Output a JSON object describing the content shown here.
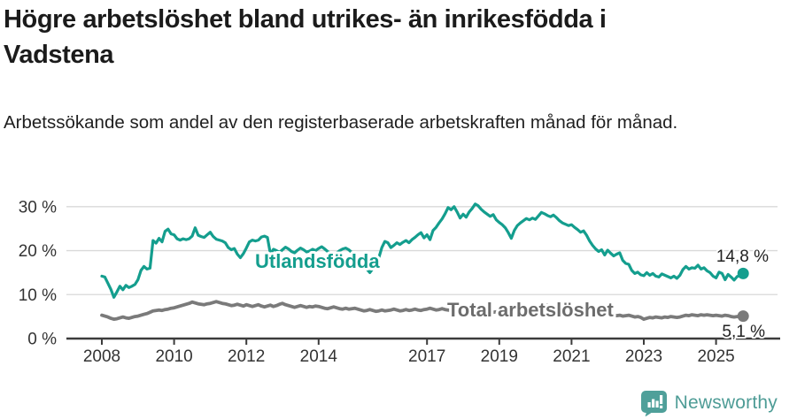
{
  "title": "Högre arbetslöshet bland utrikes- än inrikesfödda i Vadstena",
  "subtitle": "Arbetssökande som andel av den registerbaserade arbetskraften månad för månad.",
  "branding": {
    "logo_text": "Newsworthy",
    "logo_color": "#4e9c96"
  },
  "chart_data": {
    "type": "line",
    "title": "Högre arbetslöshet bland utrikes- än inrikesfödda i Vadstena",
    "subtitle": "Arbetssökande som andel av den registerbaserade arbetskraften månad för månad.",
    "unit": "%",
    "frequency": "monthly",
    "x_start": "2008-01",
    "x_end": "2025-10",
    "ylim": [
      0,
      32
    ],
    "grid": true,
    "y_ticks": [
      {
        "value": 0,
        "label": "0 %"
      },
      {
        "value": 10,
        "label": "10 %"
      },
      {
        "value": 20,
        "label": "20 %"
      },
      {
        "value": 30,
        "label": "30 %"
      }
    ],
    "x_ticks": [
      {
        "year": 2008,
        "label": "2008"
      },
      {
        "year": 2010,
        "label": "2010"
      },
      {
        "year": 2012,
        "label": "2012"
      },
      {
        "year": 2014,
        "label": "2014"
      },
      {
        "year": 2017,
        "label": "2017"
      },
      {
        "year": 2019,
        "label": "2019"
      },
      {
        "year": 2021,
        "label": "2021"
      },
      {
        "year": 2023,
        "label": "2023"
      },
      {
        "year": 2025,
        "label": "2025"
      }
    ],
    "series": [
      {
        "name": "Utlandsfödda",
        "color": "#149e8e",
        "end_label": "14,8 %",
        "end_value": 14.8,
        "values": [
          14.2,
          14.0,
          12.6,
          11.2,
          9.4,
          10.6,
          11.9,
          11.1,
          12.1,
          11.6,
          11.9,
          12.3,
          13.4,
          15.5,
          16.4,
          15.8,
          16.0,
          22.3,
          21.7,
          22.8,
          22.0,
          24.4,
          24.9,
          23.8,
          23.6,
          22.7,
          22.4,
          22.7,
          22.5,
          22.7,
          23.3,
          25.2,
          23.5,
          23.2,
          23.0,
          23.6,
          24.2,
          23.2,
          22.6,
          22.4,
          22.2,
          21.8,
          20.7,
          20.2,
          20.5,
          19.2,
          18.4,
          19.3,
          20.6,
          22.0,
          22.4,
          22.2,
          22.4,
          23.1,
          23.3,
          23.0,
          19.2,
          20.3,
          20.0,
          19.6,
          20.2,
          20.8,
          20.4,
          19.8,
          19.5,
          20.1,
          20.6,
          20.2,
          19.7,
          19.9,
          20.3,
          20.0,
          20.5,
          20.9,
          20.4,
          19.8,
          19.4,
          19.0,
          19.5,
          20.0,
          20.4,
          20.6,
          20.2,
          19.6,
          18.8,
          18.0,
          17.2,
          16.4,
          15.8,
          15.0,
          15.9,
          17.0,
          18.4,
          20.7,
          22.1,
          21.8,
          20.7,
          21.2,
          21.8,
          21.4,
          21.9,
          22.3,
          21.8,
          22.5,
          23.0,
          23.6,
          24.1,
          22.9,
          23.6,
          22.5,
          24.6,
          25.3,
          26.3,
          27.2,
          28.4,
          29.8,
          29.3,
          30.0,
          28.8,
          27.4,
          28.3,
          27.6,
          28.8,
          29.6,
          30.6,
          30.2,
          29.4,
          28.8,
          28.3,
          27.8,
          28.2,
          27.0,
          26.4,
          25.9,
          25.2,
          24.1,
          22.8,
          24.6,
          25.7,
          26.3,
          26.8,
          27.3,
          27.0,
          27.4,
          27.1,
          27.9,
          28.7,
          28.4,
          28.0,
          27.7,
          28.1,
          27.5,
          26.8,
          26.3,
          26.0,
          25.7,
          25.9,
          25.3,
          24.8,
          24.2,
          24.5,
          23.5,
          22.2,
          21.2,
          20.4,
          19.8,
          20.2,
          19.0,
          20.1,
          19.4,
          18.8,
          19.2,
          19.5,
          17.8,
          17.1,
          16.9,
          15.5,
          14.8,
          15.1,
          14.5,
          14.3,
          15.0,
          14.4,
          14.8,
          14.2,
          14.0,
          14.7,
          14.4,
          14.1,
          13.8,
          14.2,
          13.7,
          14.4,
          15.7,
          16.4,
          15.8,
          16.1,
          16.0,
          16.7,
          15.8,
          16.1,
          15.4,
          15.0,
          14.2,
          13.8,
          15.1,
          14.8,
          13.4,
          14.6,
          14.0,
          13.3,
          14.1,
          14.4,
          14.8
        ]
      },
      {
        "name": "Total arbetslöshet",
        "color": "#7a7a7a",
        "end_label": "5,1 %",
        "end_value": 5.1,
        "values": [
          5.3,
          5.1,
          4.9,
          4.6,
          4.4,
          4.5,
          4.7,
          4.9,
          4.7,
          4.6,
          4.8,
          5.0,
          5.1,
          5.3,
          5.5,
          5.7,
          6.0,
          6.3,
          6.4,
          6.5,
          6.4,
          6.6,
          6.7,
          6.9,
          7.0,
          7.2,
          7.4,
          7.6,
          7.8,
          8.0,
          8.3,
          8.1,
          7.9,
          7.8,
          7.7,
          7.9,
          8.0,
          8.2,
          8.4,
          8.2,
          8.0,
          7.9,
          7.7,
          7.5,
          7.6,
          7.8,
          7.6,
          7.4,
          7.7,
          7.5,
          7.3,
          7.5,
          7.7,
          7.4,
          7.2,
          7.4,
          7.6,
          7.3,
          7.5,
          7.8,
          8.0,
          7.7,
          7.5,
          7.3,
          7.1,
          7.3,
          7.5,
          7.3,
          7.1,
          7.3,
          7.2,
          7.4,
          7.3,
          7.1,
          6.9,
          6.8,
          7.0,
          7.2,
          7.0,
          6.8,
          6.7,
          6.9,
          6.7,
          6.8,
          6.9,
          6.7,
          6.5,
          6.3,
          6.4,
          6.6,
          6.4,
          6.2,
          6.3,
          6.5,
          6.3,
          6.4,
          6.5,
          6.7,
          6.5,
          6.3,
          6.4,
          6.6,
          6.4,
          6.5,
          6.7,
          6.5,
          6.4,
          6.6,
          6.7,
          6.9,
          6.7,
          6.5,
          6.6,
          6.8,
          6.6,
          6.5,
          6.4,
          6.5,
          6.3,
          6.4,
          6.3,
          6.2,
          6.1,
          6.0,
          6.1,
          6.2,
          6.0,
          5.9,
          6.0,
          6.1,
          6.0,
          6.1,
          6.0,
          6.1,
          6.2,
          6.1,
          6.0,
          6.2,
          6.3,
          6.2,
          6.1,
          6.2,
          6.3,
          6.4,
          6.5,
          6.6,
          7.0,
          7.4,
          7.6,
          7.5,
          7.4,
          7.3,
          7.2,
          7.0,
          6.9,
          6.8,
          6.7,
          6.6,
          6.5,
          6.3,
          6.1,
          6.0,
          5.9,
          5.8,
          5.7,
          5.6,
          5.5,
          5.4,
          5.5,
          5.4,
          5.3,
          5.2,
          5.3,
          5.1,
          5.2,
          5.3,
          5.1,
          4.9,
          5.0,
          4.8,
          4.4,
          4.6,
          4.8,
          4.7,
          4.9,
          4.8,
          4.7,
          4.9,
          4.8,
          5.0,
          4.9,
          4.8,
          4.9,
          5.1,
          5.3,
          5.2,
          5.4,
          5.3,
          5.2,
          5.4,
          5.3,
          5.4,
          5.3,
          5.2,
          5.3,
          5.2,
          5.1,
          5.3,
          5.2,
          5.0,
          4.9,
          5.0,
          5.1,
          5.1
        ]
      }
    ]
  }
}
